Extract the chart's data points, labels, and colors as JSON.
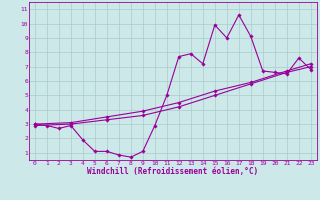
{
  "xlabel": "Windchill (Refroidissement éolien,°C)",
  "xlim": [
    -0.5,
    23.5
  ],
  "ylim": [
    0.5,
    11.5
  ],
  "xticks": [
    0,
    1,
    2,
    3,
    4,
    5,
    6,
    7,
    8,
    9,
    10,
    11,
    12,
    13,
    14,
    15,
    16,
    17,
    18,
    19,
    20,
    21,
    22,
    23
  ],
  "yticks": [
    1,
    2,
    3,
    4,
    5,
    6,
    7,
    8,
    9,
    10,
    11
  ],
  "bg_color": "#cce8e8",
  "grid_color": "#aacccc",
  "line_color": "#990099",
  "line1_x": [
    0,
    1,
    2,
    3,
    4,
    5,
    6,
    7,
    8,
    9,
    10,
    11,
    12,
    13,
    14,
    15,
    16,
    17,
    18,
    19,
    20,
    21,
    22,
    23
  ],
  "line1_y": [
    3.0,
    2.9,
    2.7,
    2.9,
    1.9,
    1.1,
    1.1,
    0.85,
    0.7,
    1.1,
    2.9,
    5.0,
    7.7,
    7.9,
    7.2,
    9.9,
    9.0,
    10.6,
    9.1,
    6.7,
    6.6,
    6.5,
    7.6,
    6.8
  ],
  "line2_x": [
    0,
    3,
    6,
    9,
    12,
    15,
    18,
    21,
    23
  ],
  "line2_y": [
    3.0,
    3.1,
    3.5,
    3.9,
    4.5,
    5.3,
    5.9,
    6.7,
    7.2
  ],
  "line3_x": [
    0,
    3,
    6,
    9,
    12,
    15,
    18,
    21,
    23
  ],
  "line3_y": [
    2.9,
    3.0,
    3.3,
    3.6,
    4.2,
    5.0,
    5.8,
    6.6,
    7.0
  ],
  "marker": "D",
  "markersize": 1.8,
  "linewidth": 0.8,
  "tick_fontsize": 4.5,
  "xlabel_fontsize": 5.5
}
